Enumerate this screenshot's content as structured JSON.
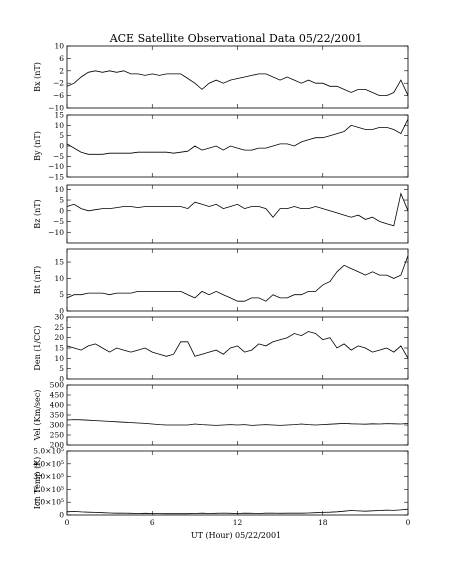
{
  "chart_data": {
    "type": "line",
    "title": "ACE Satellite Observational Data  05/22/2001",
    "xlabel": "UT (Hour)  05/22/2001",
    "xlim": [
      0,
      24
    ],
    "x_ticks": [
      "0",
      "6",
      "12",
      "18",
      "0"
    ],
    "x_tick_values": [
      0,
      6,
      12,
      18,
      24
    ],
    "grid": false,
    "panels": [
      {
        "name": "Bx (nT)",
        "ylim": [
          -10,
          10
        ],
        "y_ticks": [
          "10",
          "6",
          "2",
          "−2",
          "−6",
          "−10"
        ],
        "y_tick_values": [
          10,
          6,
          2,
          -2,
          -6,
          -10
        ],
        "x": [
          0,
          0.5,
          1,
          1.5,
          2,
          2.5,
          3,
          3.5,
          4,
          4.5,
          5,
          5.5,
          6,
          6.5,
          7,
          7.5,
          8,
          8.5,
          9,
          9.5,
          10,
          10.5,
          11,
          11.5,
          12,
          12.5,
          13,
          13.5,
          14,
          14.5,
          15,
          15.5,
          16,
          16.5,
          17,
          17.5,
          18,
          18.5,
          19,
          19.5,
          20,
          20.5,
          21,
          21.5,
          22,
          22.5,
          23,
          23.5,
          24
        ],
        "y": [
          -3,
          -2,
          0,
          1.5,
          2,
          1.5,
          2,
          1.5,
          2,
          1,
          1,
          0.5,
          1,
          0.5,
          1,
          1,
          1,
          -0.5,
          -2,
          -4,
          -2,
          -1,
          -2,
          -1,
          -0.5,
          0,
          0.5,
          1,
          1,
          0,
          -1,
          0,
          -1,
          -2,
          -1,
          -2,
          -2,
          -3,
          -3,
          -4,
          -5,
          -4,
          -4,
          -5,
          -6,
          -6,
          -5,
          -1,
          -6
        ]
      },
      {
        "name": "By (nT)",
        "ylim": [
          -15,
          15
        ],
        "y_ticks": [
          "15",
          "10",
          "5",
          "0",
          "−5",
          "−10",
          "−15"
        ],
        "y_tick_values": [
          15,
          10,
          5,
          0,
          -5,
          -10,
          -15
        ],
        "x": [
          0,
          0.5,
          1,
          1.5,
          2,
          2.5,
          3,
          3.5,
          4,
          4.5,
          5,
          5.5,
          6,
          6.5,
          7,
          7.5,
          8,
          8.5,
          9,
          9.5,
          10,
          10.5,
          11,
          11.5,
          12,
          12.5,
          13,
          13.5,
          14,
          14.5,
          15,
          15.5,
          16,
          16.5,
          17,
          17.5,
          18,
          18.5,
          19,
          19.5,
          20,
          20.5,
          21,
          21.5,
          22,
          22.5,
          23,
          23.5,
          24
        ],
        "y": [
          1,
          -1,
          -3,
          -4,
          -4,
          -4,
          -3.5,
          -3.5,
          -3.5,
          -3.5,
          -3,
          -3,
          -3,
          -3,
          -3,
          -3.5,
          -3,
          -2.5,
          0,
          -2,
          -1,
          0,
          -2,
          0,
          -1,
          -2,
          -2,
          -1,
          -1,
          0,
          1,
          1,
          0,
          2,
          3,
          4,
          4,
          5,
          6,
          7,
          10,
          9,
          8,
          8,
          9,
          9,
          8,
          6,
          13
        ]
      },
      {
        "name": "Bz (nT)",
        "ylim": [
          -15,
          12
        ],
        "y_ticks": [
          "10",
          "5",
          "0",
          "−5",
          "−10"
        ],
        "y_tick_values": [
          10,
          5,
          0,
          -5,
          -10
        ],
        "x": [
          0,
          0.5,
          1,
          1.5,
          2,
          2.5,
          3,
          3.5,
          4,
          4.5,
          5,
          5.5,
          6,
          6.5,
          7,
          7.5,
          8,
          8.5,
          9,
          9.5,
          10,
          10.5,
          11,
          11.5,
          12,
          12.5,
          13,
          13.5,
          14,
          14.5,
          15,
          15.5,
          16,
          16.5,
          17,
          17.5,
          18,
          18.5,
          19,
          19.5,
          20,
          20.5,
          21,
          21.5,
          22,
          22.5,
          23,
          23.5,
          24
        ],
        "y": [
          2,
          3,
          1,
          0,
          0.5,
          1,
          1,
          1.5,
          2,
          2,
          1.5,
          2,
          2,
          2,
          2,
          2,
          2,
          1,
          4,
          3,
          2,
          3,
          1,
          2,
          3,
          1,
          2,
          2,
          1,
          -3,
          1,
          1,
          2,
          1,
          1,
          2,
          1,
          0,
          -1,
          -2,
          -3,
          -2,
          -4,
          -3,
          -5,
          -6,
          -7,
          8,
          0
        ]
      },
      {
        "name": "Bt (nT)",
        "ylim": [
          0,
          19
        ],
        "y_ticks": [
          "15",
          "10",
          "5",
          "0"
        ],
        "y_tick_values": [
          15,
          10,
          5,
          0
        ],
        "x": [
          0,
          0.5,
          1,
          1.5,
          2,
          2.5,
          3,
          3.5,
          4,
          4.5,
          5,
          5.5,
          6,
          6.5,
          7,
          7.5,
          8,
          8.5,
          9,
          9.5,
          10,
          10.5,
          11,
          11.5,
          12,
          12.5,
          13,
          13.5,
          14,
          14.5,
          15,
          15.5,
          16,
          16.5,
          17,
          17.5,
          18,
          18.5,
          19,
          19.5,
          20,
          20.5,
          21,
          21.5,
          22,
          22.5,
          23,
          23.5,
          24
        ],
        "y": [
          4,
          5,
          5,
          5.5,
          5.5,
          5.5,
          5,
          5.5,
          5.5,
          5.5,
          6,
          6,
          6,
          6,
          6,
          6,
          6,
          5,
          4,
          6,
          5,
          6,
          5,
          4,
          3,
          3,
          4,
          4,
          3,
          5,
          4,
          4,
          5,
          5,
          6,
          6,
          8,
          9,
          12,
          14,
          13,
          12,
          11,
          12,
          11,
          11,
          10,
          11,
          17
        ]
      },
      {
        "name": "Den (1/CC)",
        "ylim": [
          0,
          30
        ],
        "y_ticks": [
          "30",
          "25",
          "20",
          "15",
          "10",
          "5",
          "0"
        ],
        "y_tick_values": [
          30,
          25,
          20,
          15,
          10,
          5,
          0
        ],
        "x": [
          0,
          0.5,
          1,
          1.5,
          2,
          2.5,
          3,
          3.5,
          4,
          4.5,
          5,
          5.5,
          6,
          6.5,
          7,
          7.5,
          8,
          8.5,
          9,
          9.5,
          10,
          10.5,
          11,
          11.5,
          12,
          12.5,
          13,
          13.5,
          14,
          14.5,
          15,
          15.5,
          16,
          16.5,
          17,
          17.5,
          18,
          18.5,
          19,
          19.5,
          20,
          20.5,
          21,
          21.5,
          22,
          22.5,
          23,
          23.5,
          24
        ],
        "y": [
          16,
          15,
          14,
          16,
          17,
          15,
          13,
          15,
          14,
          13,
          14,
          15,
          13,
          12,
          11,
          12,
          18,
          18,
          11,
          12,
          13,
          14,
          12,
          15,
          16,
          13,
          14,
          17,
          16,
          18,
          19,
          20,
          22,
          21,
          23,
          22,
          19,
          20,
          15,
          17,
          14,
          16,
          15,
          13,
          14,
          15,
          13,
          16,
          10
        ]
      },
      {
        "name": "Vel (Km/sec)",
        "ylim": [
          200,
          500
        ],
        "y_ticks": [
          "500",
          "450",
          "400",
          "350",
          "300",
          "250",
          "200"
        ],
        "y_tick_values": [
          500,
          450,
          400,
          350,
          300,
          250,
          200
        ],
        "x": [
          0,
          0.5,
          1,
          1.5,
          2,
          2.5,
          3,
          3.5,
          4,
          4.5,
          5,
          5.5,
          6,
          6.5,
          7,
          7.5,
          8,
          8.5,
          9,
          9.5,
          10,
          10.5,
          11,
          11.5,
          12,
          12.5,
          13,
          13.5,
          14,
          14.5,
          15,
          15.5,
          16,
          16.5,
          17,
          17.5,
          18,
          18.5,
          19,
          19.5,
          20,
          20.5,
          21,
          21.5,
          22,
          22.5,
          23,
          23.5,
          24
        ],
        "y": [
          325,
          327,
          326,
          324,
          322,
          320,
          318,
          316,
          314,
          312,
          310,
          308,
          305,
          302,
          300,
          300,
          300,
          300,
          305,
          302,
          300,
          298,
          300,
          302,
          300,
          302,
          298,
          300,
          302,
          300,
          298,
          300,
          302,
          305,
          302,
          300,
          302,
          304,
          306,
          308,
          306,
          305,
          304,
          306,
          305,
          307,
          306,
          305,
          308
        ]
      },
      {
        "name": "Ion Temp (K)",
        "ylim": [
          0,
          500000
        ],
        "y_ticks": [
          "5.0×10⁵",
          "4.0×10⁵",
          "3.0×10⁵",
          "2.0×10⁵",
          "1.0×10⁵",
          "0"
        ],
        "y_tick_values": [
          500000,
          400000,
          300000,
          200000,
          100000,
          0
        ],
        "x": [
          0,
          0.5,
          1,
          1.5,
          2,
          2.5,
          3,
          3.5,
          4,
          4.5,
          5,
          5.5,
          6,
          6.5,
          7,
          7.5,
          8,
          8.5,
          9,
          9.5,
          10,
          10.5,
          11,
          11.5,
          12,
          12.5,
          13,
          13.5,
          14,
          14.5,
          15,
          15.5,
          16,
          16.5,
          17,
          17.5,
          18,
          18.5,
          19,
          19.5,
          20,
          20.5,
          21,
          21.5,
          22,
          22.5,
          23,
          23.5,
          24
        ],
        "y": [
          25000,
          28000,
          24000,
          22000,
          20000,
          18000,
          16000,
          14000,
          15000,
          13000,
          12000,
          13000,
          12000,
          11000,
          10000,
          10000,
          10000,
          10000,
          12000,
          14000,
          12000,
          13000,
          15000,
          13000,
          12000,
          14000,
          13000,
          12000,
          14000,
          15000,
          13000,
          14000,
          15000,
          14000,
          16000,
          18000,
          20000,
          22000,
          25000,
          30000,
          35000,
          32000,
          30000,
          33000,
          35000,
          38000,
          36000,
          40000,
          45000
        ]
      }
    ]
  }
}
